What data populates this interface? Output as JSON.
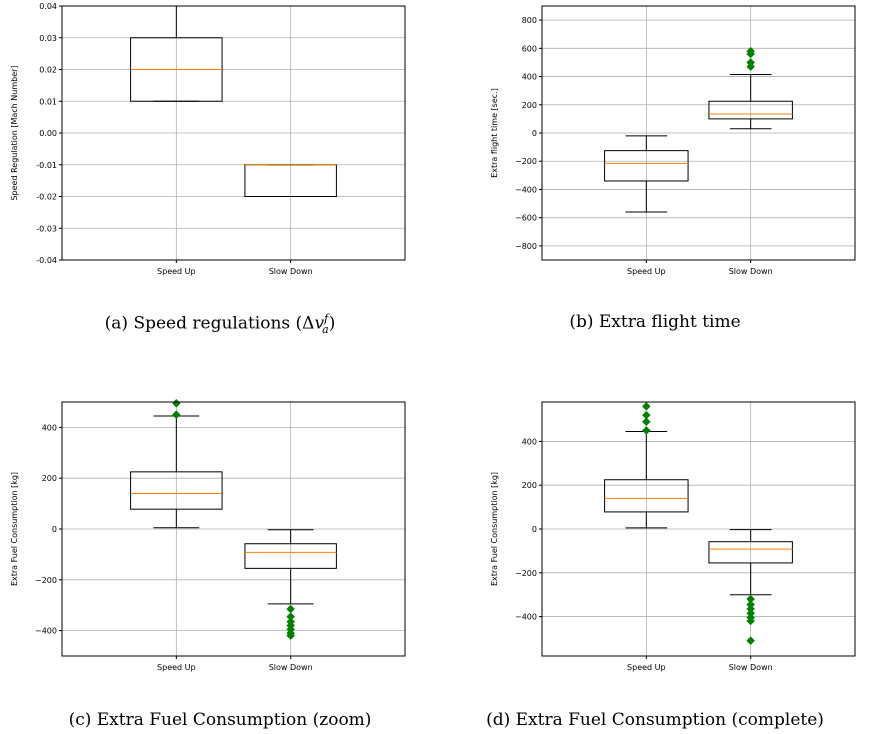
{
  "captions": {
    "a_prefix": "(a)  Speed regulations (Δ",
    "a_var": "v",
    "a_sub": "a",
    "a_sup": "f",
    "a_suffix": ")",
    "b": "(b)  Extra flight time",
    "c": "(c)  Extra Fuel Consumption (zoom)",
    "d": "(d)  Extra Fuel Consumption (complete)"
  },
  "colors": {
    "median": "#ff7f0e",
    "outlier": "#008000",
    "box": "#000000",
    "grid": "#b0b0b0"
  },
  "chart_data": [
    {
      "id": "a",
      "type": "box",
      "categories": [
        "Speed Up",
        "Slow Down"
      ],
      "ylabel": "Speed Regulation [Mach Number]",
      "ylim": [
        -0.04,
        0.04
      ],
      "yticks": [
        -0.04,
        -0.03,
        -0.02,
        -0.01,
        0.0,
        0.01,
        0.02,
        0.03,
        0.04
      ],
      "ytick_labels": [
        "-0.04",
        "-0.03",
        "-0.02",
        "-0.01",
        "0.00",
        "0.01",
        "0.02",
        "0.03",
        "0.04"
      ],
      "grid": true,
      "boxes": [
        {
          "whisker_low": 0.01,
          "q1": 0.01,
          "median": 0.02,
          "q3": 0.03,
          "whisker_high": 0.04,
          "outliers": []
        },
        {
          "whisker_low": -0.02,
          "q1": -0.02,
          "median": -0.01,
          "q3": -0.01,
          "whisker_high": -0.01,
          "outliers": []
        }
      ]
    },
    {
      "id": "b",
      "type": "box",
      "categories": [
        "Speed Up",
        "Slow Down"
      ],
      "ylabel": "Extra flight time [sec.]",
      "ylim": [
        -900,
        900
      ],
      "yticks": [
        -800,
        -600,
        -400,
        -200,
        0,
        200,
        400,
        600,
        800
      ],
      "ytick_labels": [
        "−800",
        "−600",
        "−400",
        "−200",
        "0",
        "200",
        "400",
        "600",
        "800"
      ],
      "grid": true,
      "boxes": [
        {
          "whisker_low": -560,
          "q1": -340,
          "median": -215,
          "q3": -125,
          "whisker_high": -20,
          "outliers": []
        },
        {
          "whisker_low": 30,
          "q1": 100,
          "median": 135,
          "q3": 225,
          "whisker_high": 415,
          "outliers": [
            470,
            500,
            560,
            580
          ]
        }
      ]
    },
    {
      "id": "c",
      "type": "box",
      "categories": [
        "Speed Up",
        "Slow Down"
      ],
      "ylabel": "Extra Fuel Consumption [kg]",
      "ylim": [
        -500,
        500
      ],
      "yticks": [
        -400,
        -200,
        0,
        200,
        400
      ],
      "ytick_labels": [
        "−400",
        "−200",
        "0",
        "200",
        "400"
      ],
      "grid": true,
      "boxes": [
        {
          "whisker_low": 5,
          "q1": 78,
          "median": 140,
          "q3": 225,
          "whisker_high": 445,
          "outliers": [
            450,
            495
          ]
        },
        {
          "whisker_low": -295,
          "q1": -155,
          "median": -92,
          "q3": -58,
          "whisker_high": -3,
          "outliers": [
            -315,
            -345,
            -365,
            -380,
            -395,
            -410,
            -420
          ]
        }
      ]
    },
    {
      "id": "d",
      "type": "box",
      "categories": [
        "Speed Up",
        "Slow Down"
      ],
      "ylabel": "Extra Fuel Consumption [kg]",
      "ylim": [
        -580,
        580
      ],
      "yticks": [
        -400,
        -200,
        0,
        200,
        400
      ],
      "ytick_labels": [
        "−400",
        "−200",
        "0",
        "200",
        "400"
      ],
      "grid": true,
      "boxes": [
        {
          "whisker_low": 5,
          "q1": 78,
          "median": 140,
          "q3": 225,
          "whisker_high": 445,
          "outliers": [
            450,
            490,
            520,
            560
          ]
        },
        {
          "whisker_low": -300,
          "q1": -155,
          "median": -92,
          "q3": -58,
          "whisker_high": -3,
          "outliers": [
            -320,
            -345,
            -365,
            -385,
            -405,
            -420,
            -510
          ]
        }
      ]
    }
  ]
}
